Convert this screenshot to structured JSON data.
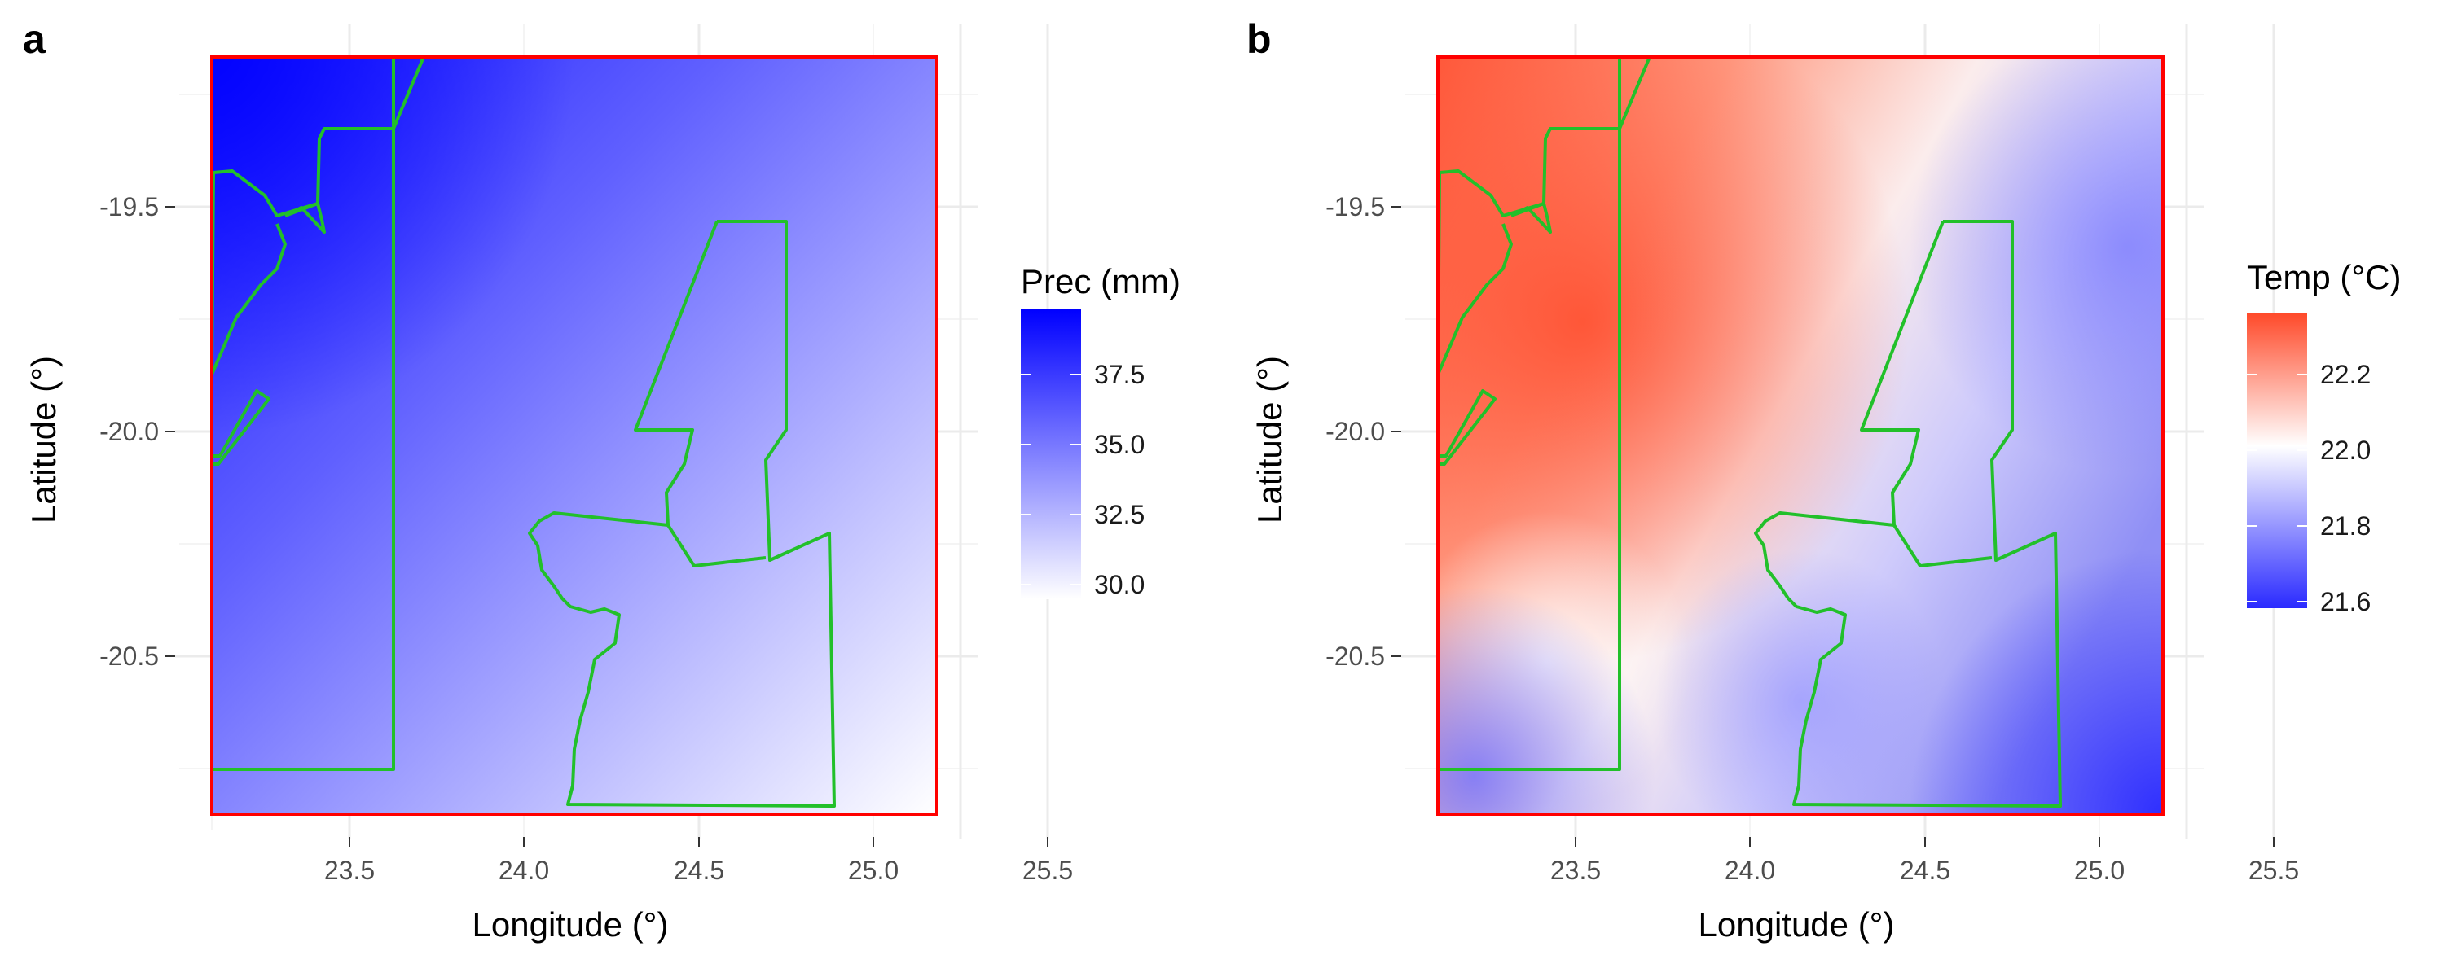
{
  "panels": [
    {
      "tag": "a",
      "xlabel": "Longitude (°)",
      "ylabel": "Latitude (°)",
      "x_ticks": [
        "23.5",
        "24.0",
        "24.5",
        "25.0",
        "25.5"
      ],
      "y_ticks": [
        "-19.5",
        "-20.0",
        "-20.5"
      ],
      "legend": {
        "title": "Prec (mm)",
        "labels": [
          "37.5",
          "35.0",
          "32.5",
          "30.0"
        ],
        "colors": {
          "high": "#0000ff",
          "low": "#ffffff"
        }
      }
    },
    {
      "tag": "b",
      "xlabel": "Longitude (°)",
      "ylabel": "Latitude (°)",
      "x_ticks": [
        "23.5",
        "24.0",
        "24.5",
        "25.0",
        "25.5"
      ],
      "y_ticks": [
        "-19.5",
        "-20.0",
        "-20.5"
      ],
      "legend": {
        "title": "Temp (°C)",
        "labels": [
          "22.2",
          "22.0",
          "21.8",
          "21.6"
        ],
        "colors": {
          "high": "#ff4a2a",
          "mid": "#ffffff",
          "low": "#2a2aff"
        }
      }
    }
  ],
  "map_style": {
    "study_area_outline_color": "#ff0000",
    "boundary_color": "#22c02a",
    "grid_color": "#ebebeb"
  }
}
